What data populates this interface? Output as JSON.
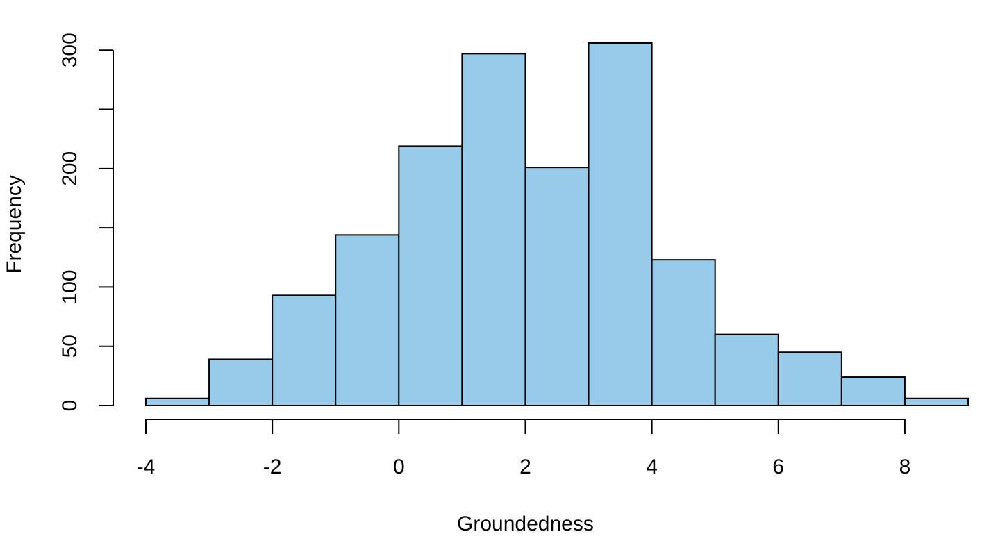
{
  "chart_data": {
    "type": "bar",
    "histogram": true,
    "title": "",
    "xlabel": "Groundedness",
    "ylabel": "Frequency",
    "bin_edges": [
      -4,
      -3,
      -2,
      -1,
      0,
      1,
      2,
      3,
      4,
      5,
      6,
      7,
      8,
      9
    ],
    "values": [
      6,
      39,
      93,
      144,
      219,
      297,
      201,
      306,
      123,
      60,
      45,
      24,
      6
    ],
    "xlim": [
      -4,
      9
    ],
    "ylim": [
      0,
      306
    ],
    "x_ticks": [
      -4,
      -2,
      0,
      2,
      4,
      6,
      8
    ],
    "x_tick_labels": [
      "-4",
      "-2",
      "0",
      "2",
      "4",
      "6",
      "8"
    ],
    "y_ticks": [
      0,
      50,
      100,
      150,
      200,
      250,
      300
    ],
    "y_tick_labels": [
      "0",
      "50",
      "100",
      "",
      "200",
      "",
      "300"
    ],
    "grid": false,
    "legend": "none",
    "colors": {
      "bar_fill": "#97cbe9",
      "bar_stroke": "#000000"
    }
  }
}
